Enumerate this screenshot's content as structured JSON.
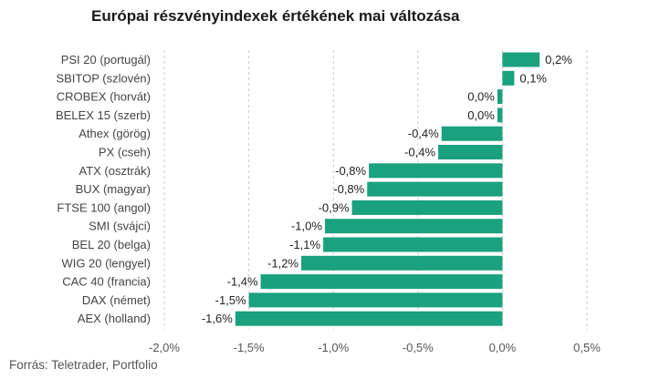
{
  "chart_data": {
    "type": "bar",
    "orientation": "horizontal",
    "title": "Európai részvényindexek értékének mai változása",
    "source": "Forrás: Teletrader, Portfolio",
    "xlabel": "",
    "ylabel": "",
    "categories": [
      "PSI 20 (portugál)",
      "SBITOP (szlovén)",
      "CROBEX (horvát)",
      "BELEX 15 (szerb)",
      "Athex (görög)",
      "PX (cseh)",
      "ATX (osztrák)",
      "BUX (magyar)",
      "FTSE 100 (angol)",
      "SMI (svájci)",
      "BEL 20 (belga)",
      "WIG 20 (lengyel)",
      "CAC 40 (francia)",
      "DAX (német)",
      "AEX (holland)"
    ],
    "values": [
      0.22,
      0.07,
      -0.03,
      -0.03,
      -0.36,
      -0.38,
      -0.79,
      -0.8,
      -0.89,
      -1.05,
      -1.06,
      -1.19,
      -1.43,
      -1.5,
      -1.58
    ],
    "value_labels": [
      "0,2%",
      "0,1%",
      "0,0%",
      "0,0%",
      "-0,4%",
      "-0,4%",
      "-0,8%",
      "-0,8%",
      "-0,9%",
      "-1,0%",
      "-1,1%",
      "-1,2%",
      "-1,4%",
      "-1,5%",
      "-1,6%"
    ],
    "xlim": [
      -2.0,
      0.5
    ],
    "x_ticks": [
      -2.0,
      -1.5,
      -1.0,
      -0.5,
      0.0,
      0.5
    ],
    "x_tick_labels": [
      "-2,0%",
      "-1,5%",
      "-1,0%",
      "-0,5%",
      "0,0%",
      "0,5%"
    ],
    "grid": "vertical dashed",
    "bar_color": "#1aa17e",
    "grid_color": "#cccccc"
  }
}
